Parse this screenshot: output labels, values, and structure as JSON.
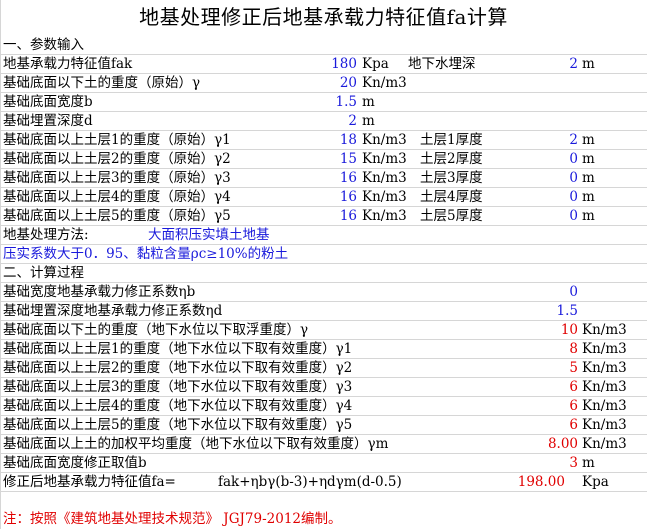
{
  "title": "地基处理修正后地基承载力特征值fa计算",
  "section1": "一、参数输入",
  "inputs": {
    "fak": {
      "label": "地基承载力特征值fak",
      "value": "180",
      "unit": "Kpa"
    },
    "groundwater": {
      "label": "地下水埋深",
      "value": "2",
      "unit": "m"
    },
    "gamma": {
      "label": "基础底面以下土的重度（原始）γ",
      "value": "20",
      "unit": "Kn/m3"
    },
    "b": {
      "label": "基础底面宽度b",
      "value": "1.5",
      "unit": "m"
    },
    "d": {
      "label": "基础埋置深度d",
      "value": "2",
      "unit": "m"
    },
    "layers": [
      {
        "label": "基础底面以上土层1的重度（原始）γ1",
        "value": "18",
        "unit": "Kn/m3",
        "thk_label": "土层1厚度",
        "thk": "2",
        "thk_unit": "m"
      },
      {
        "label": "基础底面以上土层2的重度（原始）γ2",
        "value": "15",
        "unit": "Kn/m3",
        "thk_label": "土层2厚度",
        "thk": "0",
        "thk_unit": "m"
      },
      {
        "label": "基础底面以上土层3的重度（原始）γ3",
        "value": "16",
        "unit": "Kn/m3",
        "thk_label": "土层3厚度",
        "thk": "0",
        "thk_unit": "m"
      },
      {
        "label": "基础底面以上土层4的重度（原始）γ4",
        "value": "16",
        "unit": "Kn/m3",
        "thk_label": "土层4厚度",
        "thk": "0",
        "thk_unit": "m"
      },
      {
        "label": "基础底面以上土层5的重度（原始）γ5",
        "value": "16",
        "unit": "Kn/m3",
        "thk_label": "土层5厚度",
        "thk": "0",
        "thk_unit": "m"
      }
    ],
    "method_label": "地基处理方法:",
    "method_value": "大面积压实填土地基",
    "method_note": "压实系数大于0．95、黏粒含量ρc≥10%的粉土"
  },
  "section2": "二、计算过程",
  "calc": {
    "eta_b": {
      "label": "基础宽度地基承载力修正系数ηb",
      "value": "0"
    },
    "eta_d": {
      "label": "基础埋置深度地基承载力修正系数ηd",
      "value": "1.5"
    },
    "gamma_below": {
      "label": "基础底面以下土的重度（地下水位以下取浮重度）γ",
      "value": "10",
      "unit": "Kn/m3"
    },
    "layers_eff": [
      {
        "label": "基础底面以上土层1的重度（地下水位以下取有效重度）γ1",
        "value": "8",
        "unit": "Kn/m3"
      },
      {
        "label": "基础底面以上土层2的重度（地下水位以下取有效重度）γ2",
        "value": "5",
        "unit": "Kn/m3"
      },
      {
        "label": "基础底面以上土层3的重度（地下水位以下取有效重度）γ3",
        "value": "6",
        "unit": "Kn/m3"
      },
      {
        "label": "基础底面以上土层4的重度（地下水位以下取有效重度）γ4",
        "value": "6",
        "unit": "Kn/m3"
      },
      {
        "label": "基础底面以上土层5的重度（地下水位以下取有效重度）γ5",
        "value": "6",
        "unit": "Kn/m3"
      }
    ],
    "gamma_m": {
      "label": "基础底面以上土的加权平均重度（地下水位以下取有效重度）γm",
      "value": "8.00",
      "unit": "Kn/m3"
    },
    "b_used": {
      "label": "基础底面宽度修正取值b",
      "value": "3",
      "unit": "m"
    },
    "fa": {
      "label": "修正后地基承载力特征值fa=",
      "formula": "fak+ηbγ(b-3)+ηdγm(d-0.5)",
      "value": "198.00",
      "unit": "Kpa"
    }
  },
  "note": "注：按照《建筑地基处理技术规范》 JGJ79-2012编制。",
  "colors": {
    "blue": "#1a1adb",
    "red": "#e00000",
    "grid": "#d6d6d6"
  }
}
